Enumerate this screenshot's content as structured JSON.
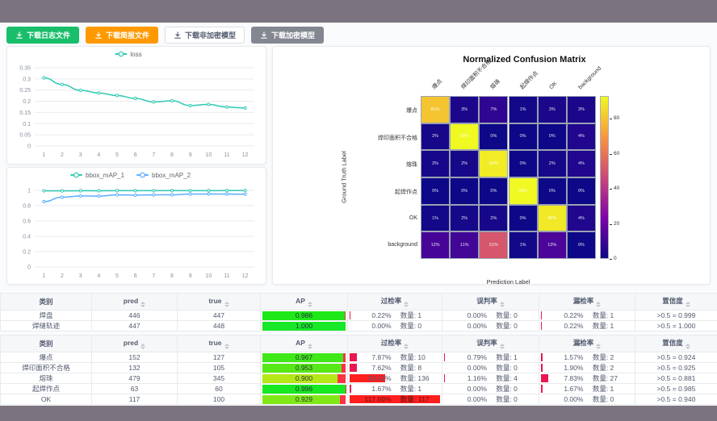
{
  "page": {
    "chrome_color": "#7b7480",
    "background": "#fafbfc"
  },
  "toolbar": {
    "buttons": [
      {
        "label": "下载日志文件",
        "bg": "#19be6b",
        "fg": "#ffffff",
        "border": "#19be6b"
      },
      {
        "label": "下载简报文件",
        "bg": "#ff9900",
        "fg": "#ffffff",
        "border": "#ff9900"
      },
      {
        "label": "下载非加密模型",
        "bg": "#ffffff",
        "fg": "#515a6e",
        "border": "#dcdee2"
      },
      {
        "label": "下载加密模型",
        "bg": "#838792",
        "fg": "#ffffff",
        "border": "#838792"
      }
    ]
  },
  "chart_data": [
    {
      "type": "line",
      "name": "loss-chart",
      "title": "",
      "x": [
        1,
        2,
        3,
        4,
        5,
        6,
        7,
        8,
        9,
        10,
        11,
        12
      ],
      "series": [
        {
          "name": "loss",
          "color": "#2fc9b2",
          "values": [
            0.305,
            0.275,
            0.249,
            0.237,
            0.226,
            0.213,
            0.197,
            0.202,
            0.181,
            0.186,
            0.174,
            0.17
          ]
        }
      ],
      "ylim": [
        0,
        0.35
      ],
      "yticks": [
        0,
        0.05,
        0.1,
        0.15,
        0.2,
        0.25,
        0.3,
        0.35
      ],
      "ytick_labels": [
        "0",
        "0.05",
        "0.1",
        "0.15",
        "0.2",
        "0.25",
        "0.3",
        "0.35"
      ],
      "grid": true,
      "legend_position": "top-center"
    },
    {
      "type": "line",
      "name": "map-chart",
      "title": "",
      "x": [
        1,
        2,
        3,
        4,
        5,
        6,
        7,
        8,
        9,
        10,
        11,
        12
      ],
      "series": [
        {
          "name": "bbox_mAP_1",
          "color": "#2fc9b2",
          "values": [
            0.993,
            0.992,
            0.994,
            0.993,
            0.995,
            0.995,
            0.995,
            0.996,
            0.995,
            0.995,
            0.996,
            0.996
          ]
        },
        {
          "name": "bbox_mAP_2",
          "color": "#5cadff",
          "values": [
            0.852,
            0.91,
            0.926,
            0.924,
            0.94,
            0.936,
            0.94,
            0.941,
            0.95,
            0.951,
            0.95,
            0.949
          ]
        }
      ],
      "ylim": [
        0,
        1.02
      ],
      "yticks": [
        0,
        0.2,
        0.4,
        0.6,
        0.8,
        1
      ],
      "ytick_labels": [
        "0",
        "0.2",
        "0.4",
        "0.6",
        "0.8",
        "1"
      ],
      "grid": true,
      "legend_position": "top-center"
    },
    {
      "type": "heatmap",
      "name": "confusion-matrix",
      "title": "Normalized Confusion Matrix",
      "xlabel": "Prediction Label",
      "ylabel": "Ground Truth Label",
      "labels": [
        "爆点",
        "焊印面积不合格",
        "熔珠",
        "起焊作点",
        "OK",
        "background"
      ],
      "matrix": [
        [
          81,
          3,
          7,
          1,
          3,
          3
        ],
        [
          2,
          93,
          0,
          0,
          0,
          4
        ],
        [
          2,
          2,
          90,
          0,
          2,
          4
        ],
        [
          0,
          0,
          0,
          93,
          0,
          0
        ],
        [
          1,
          2,
          2,
          0,
          89,
          4
        ],
        [
          12,
          11,
          51,
          1,
          13,
          0
        ]
      ],
      "value_suffix": "%",
      "colormap": "plasma",
      "colorbar": {
        "ticks": [
          0,
          20,
          40,
          60,
          80
        ],
        "vmax": 93
      }
    }
  ],
  "tables": [
    {
      "columns": [
        {
          "label": "类别",
          "sortable": false
        },
        {
          "label": "pred",
          "sortable": true
        },
        {
          "label": "true",
          "sortable": true
        },
        {
          "label": "AP",
          "sortable": true
        },
        {
          "label": "过检率",
          "sortable": true
        },
        {
          "label": "误判率",
          "sortable": true
        },
        {
          "label": "漏检率",
          "sortable": true
        },
        {
          "label": "置信度",
          "sortable": true
        }
      ],
      "rows": [
        {
          "label": "焊盘",
          "pred": "446",
          "true": "447",
          "ap": "0.986",
          "ap_value": 0.986,
          "over": {
            "pct": "0.22%",
            "count": "数量: 1",
            "value": 0.22
          },
          "mis": {
            "pct": "0.00%",
            "count": "数量: 0",
            "value": 0
          },
          "miss": {
            "pct": "0.22%",
            "count": "数量: 1",
            "value": 0.22
          },
          "conf": ">0.5 = 0.999"
        },
        {
          "label": "焊缝轨迹",
          "pred": "447",
          "true": "448",
          "ap": "1.000",
          "ap_value": 1.0,
          "over": {
            "pct": "0.00%",
            "count": "数量: 0",
            "value": 0
          },
          "mis": {
            "pct": "0.00%",
            "count": "数量: 0",
            "value": 0
          },
          "miss": {
            "pct": "0.22%",
            "count": "数量: 1",
            "value": 0.22
          },
          "conf": ">0.5 = 1.000"
        }
      ]
    },
    {
      "columns": [
        {
          "label": "类别",
          "sortable": false
        },
        {
          "label": "pred",
          "sortable": true
        },
        {
          "label": "true",
          "sortable": true
        },
        {
          "label": "AP",
          "sortable": true
        },
        {
          "label": "过检率",
          "sortable": true
        },
        {
          "label": "误判率",
          "sortable": true
        },
        {
          "label": "漏检率",
          "sortable": true
        },
        {
          "label": "置信度",
          "sortable": true
        }
      ],
      "rows": [
        {
          "label": "爆点",
          "pred": "152",
          "true": "127",
          "ap": "0.967",
          "ap_value": 0.967,
          "over": {
            "pct": "7.87%",
            "count": "数量: 10",
            "value": 7.87
          },
          "mis": {
            "pct": "0.79%",
            "count": "数量: 1",
            "value": 0.79
          },
          "miss": {
            "pct": "1.57%",
            "count": "数量: 2",
            "value": 1.57
          },
          "conf": ">0.5 = 0.924"
        },
        {
          "label": "焊印面积不合格",
          "pred": "132",
          "true": "105",
          "ap": "0.953",
          "ap_value": 0.953,
          "over": {
            "pct": "7.62%",
            "count": "数量: 8",
            "value": 7.62
          },
          "mis": {
            "pct": "0.00%",
            "count": "数量: 0",
            "value": 0
          },
          "miss": {
            "pct": "1.90%",
            "count": "数量: 2",
            "value": 1.9
          },
          "conf": ">0.5 = 0.925"
        },
        {
          "label": "熔珠",
          "pred": "479",
          "true": "345",
          "ap": "0.900",
          "ap_value": 0.9,
          "over": {
            "pct": "39.42%",
            "count": "数量: 136",
            "value": 39.42
          },
          "mis": {
            "pct": "1.16%",
            "count": "数量: 4",
            "value": 1.16
          },
          "miss": {
            "pct": "7.83%",
            "count": "数量: 27",
            "value": 7.83
          },
          "conf": ">0.5 = 0.881"
        },
        {
          "label": "起焊作点",
          "pred": "63",
          "true": "60",
          "ap": "0.996",
          "ap_value": 0.996,
          "over": {
            "pct": "1.67%",
            "count": "数量: 1",
            "value": 1.67
          },
          "mis": {
            "pct": "0.00%",
            "count": "数量: 0",
            "value": 0
          },
          "miss": {
            "pct": "1.67%",
            "count": "数量: 1",
            "value": 1.67
          },
          "conf": ">0.5 = 0.985"
        },
        {
          "label": "OK",
          "pred": "117",
          "true": "100",
          "ap": "0.929",
          "ap_value": 0.929,
          "over": {
            "pct": "117.00%",
            "count": "数量: 117",
            "value": 117
          },
          "mis": {
            "pct": "0.00%",
            "count": "数量: 0",
            "value": 0
          },
          "miss": {
            "pct": "0.00%",
            "count": "数量: 0",
            "value": 0
          },
          "conf": ">0.5 = 0.940"
        }
      ]
    }
  ]
}
